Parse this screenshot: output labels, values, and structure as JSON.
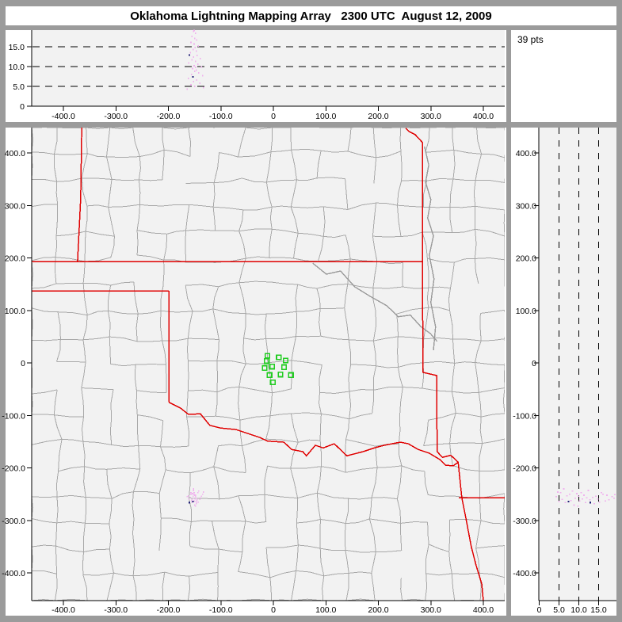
{
  "title": "Oklahoma Lightning Mapping Array   2300 UTC  August 12, 2009",
  "points_label": "39 pts",
  "colors": {
    "frame": "#9b9b9b",
    "panel_bg": "#ffffff",
    "plot_bg": "#f2f2f2",
    "axis": "#000000",
    "county_line": "#a8a8a8",
    "river_line": "#9a9a9a",
    "state_border": "#e00000",
    "station": "#22cc22",
    "source_faint": "#f0b2ee",
    "source_dark": "#26267a"
  },
  "chart_data": {
    "type": "scatter",
    "layout": "lma-triptych",
    "title": "Oklahoma Lightning Mapping Array   2300 UTC  August 12, 2009",
    "point_count": 39,
    "x_ticks_km": [
      "-400.0",
      "-300.0",
      "-200.0",
      "-100.0",
      "0",
      "100.0",
      "200.0",
      "300.0",
      "400.0"
    ],
    "y_ticks_km": [
      "400.0",
      "300.0",
      "200.0",
      "100.0",
      "0",
      "-100.0",
      "-200.0",
      "-300.0",
      "-400.0"
    ],
    "alt_ticks_km": [
      "0",
      "5.0",
      "10.0",
      "15.0"
    ],
    "alt_dashed_lines_km": [
      5,
      10,
      15
    ],
    "x_range_km": [
      -460,
      441
    ],
    "y_range_km": [
      -452,
      448
    ],
    "alt_range_km": [
      0,
      19.3
    ],
    "grid": "off",
    "sources": [
      [
        -152,
        -258,
        18.9
      ],
      [
        -148,
        -255,
        18.4
      ],
      [
        -155,
        -261,
        17.6
      ],
      [
        -150,
        -252,
        17.1
      ],
      [
        -146,
        -263,
        16.7
      ],
      [
        -157,
        -250,
        16.1
      ],
      [
        -151,
        -247,
        15.7
      ],
      [
        -143,
        -265,
        15.2
      ],
      [
        -149,
        -259,
        14.8
      ],
      [
        -153,
        -254,
        14.3
      ],
      [
        -147,
        -268,
        13.9
      ],
      [
        -158,
        -256,
        13.5
      ],
      [
        -160,
        -266,
        12.9,
        "d"
      ],
      [
        -145,
        -261,
        12.8
      ],
      [
        -152,
        -243,
        12.4
      ],
      [
        -139,
        -257,
        12.0
      ],
      [
        -155,
        -266,
        11.7
      ],
      [
        -148,
        -252,
        11.3
      ],
      [
        -161,
        -259,
        10.9
      ],
      [
        -144,
        -247,
        10.6
      ],
      [
        -151,
        -263,
        10.2
      ],
      [
        -137,
        -254,
        9.9
      ],
      [
        -154,
        -249,
        9.5
      ],
      [
        -147,
        -258,
        9.1
      ],
      [
        -150,
        -271,
        8.8
      ],
      [
        -142,
        -244,
        8.4
      ],
      [
        -156,
        -262,
        8.0
      ],
      [
        -135,
        -250,
        7.7
      ],
      [
        -153,
        -264,
        7.4,
        "d"
      ],
      [
        -162,
        -253,
        7.0
      ],
      [
        -146,
        -266,
        6.6
      ],
      [
        -152,
        -240,
        6.2
      ],
      [
        -140,
        -260,
        5.8
      ],
      [
        -157,
        -247,
        5.4
      ],
      [
        -150,
        -264,
        5.0
      ],
      [
        -133,
        -246,
        4.7
      ],
      [
        -164,
        -255,
        4.3
      ],
      [
        -148,
        -273,
        9.8
      ],
      [
        -151,
        -251,
        19.1
      ]
    ],
    "stations_km": [
      [
        -11.1,
        13.6
      ],
      [
        10.2,
        10.6
      ],
      [
        23.3,
        4.5
      ],
      [
        -12.6,
        3.5
      ],
      [
        -2.6,
        -7.1
      ],
      [
        -16.7,
        -9.5
      ],
      [
        20.2,
        -8.0
      ],
      [
        -7.2,
        -23.1
      ],
      [
        13.7,
        -22.2
      ],
      [
        33.5,
        -23.1
      ],
      [
        -1.1,
        -37.2
      ]
    ],
    "state_borders_km": [
      [
        [
          -365,
          448
        ],
        [
          -367,
          314
        ],
        [
          -373,
          193
        ]
      ],
      [
        [
          -460,
          193
        ],
        [
          284,
          193
        ]
      ],
      [
        [
          -460,
          137
        ],
        [
          -199,
          137
        ]
      ],
      [
        [
          -199,
          137
        ],
        [
          -199,
          -75
        ]
      ],
      [
        [
          -199,
          -75
        ],
        [
          -177,
          -86
        ],
        [
          -162,
          -98
        ],
        [
          -139,
          -97
        ],
        [
          -121,
          -119
        ],
        [
          -101,
          -124
        ],
        [
          -71,
          -127
        ],
        [
          -26,
          -142
        ],
        [
          -11,
          -149
        ],
        [
          20,
          -151
        ],
        [
          35,
          -165
        ],
        [
          56,
          -169
        ],
        [
          63,
          -177
        ],
        [
          80,
          -157
        ],
        [
          95,
          -162
        ],
        [
          116,
          -154
        ],
        [
          140,
          -177
        ],
        [
          171,
          -169
        ],
        [
          192,
          -162
        ],
        [
          211,
          -157
        ],
        [
          242,
          -151
        ],
        [
          257,
          -154
        ],
        [
          276,
          -165
        ],
        [
          297,
          -172
        ],
        [
          317,
          -184
        ],
        [
          328,
          -195
        ],
        [
          343,
          -196
        ],
        [
          352,
          -189
        ]
      ],
      [
        [
          252,
          447
        ],
        [
          258,
          441
        ],
        [
          270,
          435
        ],
        [
          284,
          420
        ],
        [
          284,
          193
        ],
        [
          285,
          -18
        ],
        [
          311,
          -24
        ],
        [
          312,
          -169
        ],
        [
          322,
          -180
        ],
        [
          338,
          -176
        ],
        [
          352,
          -189
        ]
      ],
      [
        [
          352,
          -189
        ],
        [
          359,
          -257
        ],
        [
          367,
          -297
        ],
        [
          377,
          -350
        ],
        [
          386,
          -385
        ],
        [
          397,
          -421
        ],
        [
          400,
          -453
        ]
      ],
      [
        [
          353,
          -257
        ],
        [
          441,
          -257
        ]
      ]
    ],
    "gray_rivers_km": [
      [
        [
          288,
          412
        ],
        [
          296,
          377
        ],
        [
          290,
          344
        ],
        [
          300,
          311
        ],
        [
          294,
          276
        ],
        [
          305,
          242
        ],
        [
          297,
          205
        ],
        [
          306,
          160
        ],
        [
          300,
          115
        ],
        [
          309,
          69
        ],
        [
          305,
          24
        ]
      ],
      [
        [
          75,
          190
        ],
        [
          101,
          169
        ],
        [
          128,
          175
        ],
        [
          155,
          145
        ],
        [
          184,
          127
        ],
        [
          216,
          109
        ],
        [
          238,
          88
        ],
        [
          261,
          91
        ],
        [
          281,
          69
        ],
        [
          299,
          56
        ],
        [
          312,
          41
        ]
      ]
    ]
  }
}
